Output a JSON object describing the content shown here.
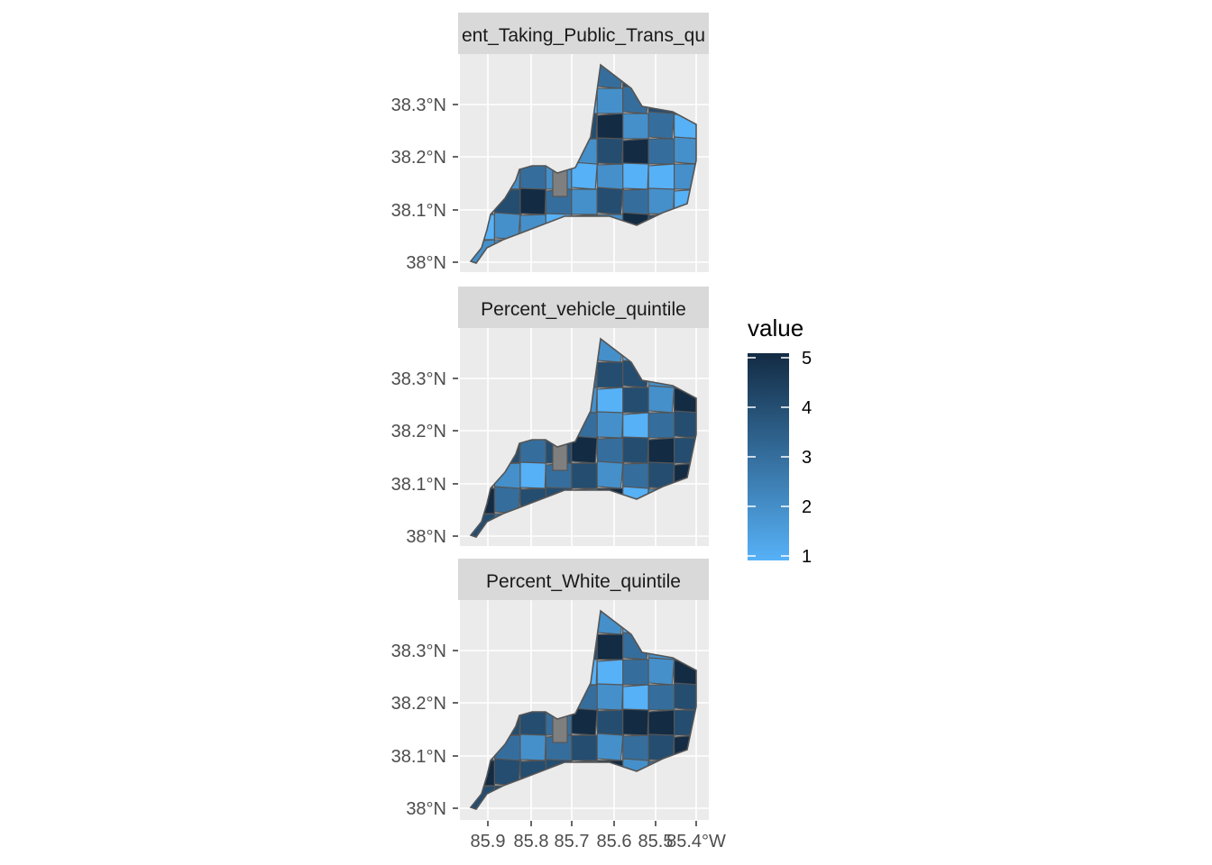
{
  "panels": [
    {
      "strip_label": "Percent_Taking_Public_Trans_quintile",
      "strip_label_visible": "ent_Taking_Public_Trans_qu",
      "region_values": [
        3,
        4,
        2,
        1,
        2,
        3,
        4,
        5,
        4,
        2,
        3,
        2,
        1,
        1,
        2,
        3,
        4,
        2,
        1,
        5,
        2,
        3,
        4,
        5,
        2,
        3,
        1,
        4,
        1,
        2,
        3,
        2,
        4,
        5,
        3,
        2,
        1,
        2,
        3,
        2,
        1,
        2,
        1,
        1,
        2,
        3,
        4,
        5,
        3,
        2,
        4,
        3,
        2,
        1,
        1,
        2,
        2,
        1,
        3,
        2,
        5,
        4,
        3,
        2,
        2,
        1,
        1,
        2,
        3,
        4,
        2,
        2
      ]
    },
    {
      "strip_label": "Percent_vehicle_quintile",
      "strip_label_visible": "Percent_vehicle_quintile",
      "region_values": [
        2,
        1,
        3,
        4,
        5,
        2,
        1,
        1,
        2,
        3,
        4,
        5,
        4,
        3,
        4,
        4,
        2,
        3,
        5,
        1,
        4,
        3,
        2,
        1,
        4,
        2,
        5,
        3,
        4,
        5,
        2,
        3,
        2,
        1,
        3,
        4,
        5,
        4,
        3,
        4,
        5,
        3,
        4,
        5,
        4,
        3,
        2,
        1,
        3,
        4,
        2,
        3,
        4,
        5,
        5,
        3,
        4,
        4,
        2,
        5,
        1,
        2,
        3,
        4,
        3,
        5,
        4,
        3,
        4,
        3,
        4,
        5
      ]
    },
    {
      "strip_label": "Percent_White_quintile",
      "strip_label_visible": "Percent_White_quintile",
      "region_values": [
        1,
        2,
        2,
        1,
        3,
        2,
        1,
        1,
        2,
        1,
        3,
        2,
        3,
        4,
        5,
        3,
        2,
        3,
        5,
        5,
        4,
        2,
        1,
        1,
        3,
        2,
        5,
        3,
        4,
        5,
        2,
        3,
        2,
        1,
        3,
        4,
        5,
        4,
        4,
        3,
        5,
        4,
        5,
        5,
        4,
        4,
        3,
        2,
        3,
        4,
        2,
        3,
        4,
        5,
        5,
        4,
        4,
        4,
        3,
        5,
        2,
        3,
        3,
        4,
        4,
        5,
        5,
        4,
        4,
        3,
        4,
        5
      ]
    }
  ],
  "y_axis_ticks": [
    "38.3°N",
    "38.2°N",
    "38.1°N",
    "38°N"
  ],
  "x_axis_ticks": [
    "85.9°W",
    "85.8°W",
    "85.7°W",
    "85.6°W",
    "85.5°W",
    "85.4°W"
  ],
  "x_axis_ticks_visible": [
    "85.9",
    "85.8",
    "85.7",
    "85.6",
    "85.5",
    "85.4°W"
  ],
  "legend": {
    "title": "value",
    "labels": [
      "5",
      "4",
      "3",
      "2",
      "1"
    ],
    "low_color": "#56b1f7",
    "high_color": "#132b43"
  },
  "colors": {
    "panel_bg": "#ebebeb",
    "grid": "#ffffff",
    "strip_bg": "#d9d9d9",
    "border": "#555555",
    "na_fill": "#7f7f7f"
  }
}
